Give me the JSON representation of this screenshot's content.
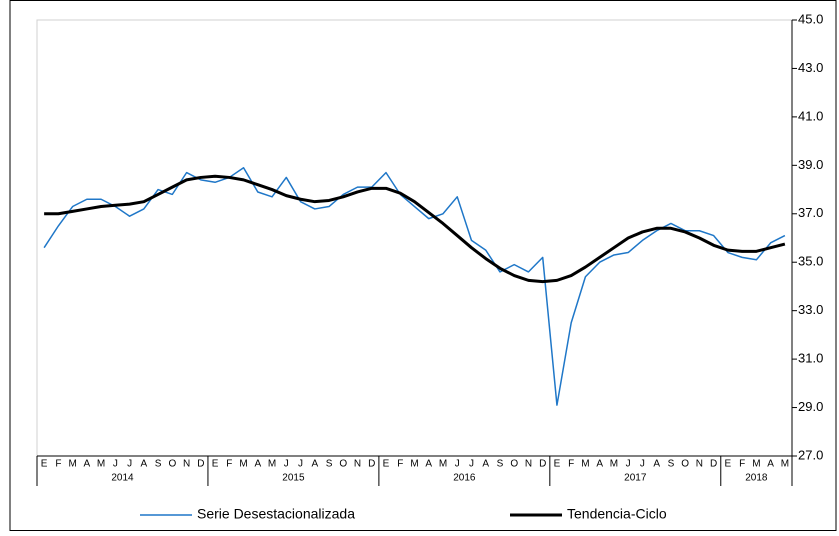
{
  "chart_data": {
    "type": "line",
    "categories": [
      "E",
      "F",
      "M",
      "A",
      "M",
      "J",
      "J",
      "A",
      "S",
      "O",
      "N",
      "D",
      "E",
      "F",
      "M",
      "A",
      "M",
      "J",
      "J",
      "A",
      "S",
      "O",
      "N",
      "D",
      "E",
      "F",
      "M",
      "A",
      "M",
      "J",
      "J",
      "A",
      "S",
      "O",
      "N",
      "D",
      "E",
      "F",
      "M",
      "A",
      "M",
      "J",
      "J",
      "A",
      "S",
      "O",
      "N",
      "D",
      "E",
      "F",
      "M",
      "A",
      "M"
    ],
    "x_groups": [
      "2014",
      "2015",
      "2016",
      "2017",
      "2018"
    ],
    "series": [
      {
        "name": "Serie Desestacionalizada",
        "color": "#1f77c8",
        "values": [
          35.6,
          36.5,
          37.3,
          37.6,
          37.6,
          37.3,
          36.9,
          37.2,
          38.0,
          37.8,
          38.7,
          38.4,
          38.3,
          38.5,
          38.9,
          37.9,
          37.7,
          38.5,
          37.5,
          37.2,
          37.3,
          37.8,
          38.1,
          38.1,
          38.7,
          37.8,
          37.3,
          36.8,
          37.0,
          37.7,
          35.9,
          35.5,
          34.6,
          34.9,
          34.6,
          35.2,
          29.1,
          32.5,
          34.4,
          35.0,
          35.3,
          35.4,
          35.9,
          36.3,
          36.6,
          36.3,
          36.3,
          36.1,
          35.4,
          35.2,
          35.1,
          35.8,
          36.1
        ]
      },
      {
        "name": "Tendencia-Ciclo",
        "color": "#000000",
        "values": [
          37.0,
          37.0,
          37.1,
          37.2,
          37.3,
          37.35,
          37.4,
          37.5,
          37.8,
          38.1,
          38.4,
          38.5,
          38.55,
          38.5,
          38.4,
          38.2,
          38.0,
          37.75,
          37.6,
          37.5,
          37.55,
          37.7,
          37.9,
          38.05,
          38.05,
          37.85,
          37.5,
          37.05,
          36.6,
          36.1,
          35.6,
          35.15,
          34.75,
          34.45,
          34.25,
          34.2,
          34.25,
          34.45,
          34.8,
          35.2,
          35.6,
          36.0,
          36.25,
          36.4,
          36.4,
          36.25,
          36.0,
          35.7,
          35.5,
          35.45,
          35.45,
          35.6,
          35.75
        ]
      }
    ],
    "ylim": [
      27,
      45
    ],
    "yticks": [
      {
        "value": 27,
        "label": "27.0"
      },
      {
        "value": 29,
        "label": "29.0"
      },
      {
        "value": 31,
        "label": "31.0"
      },
      {
        "value": 33,
        "label": "33.0"
      },
      {
        "value": 35,
        "label": "35.0"
      },
      {
        "value": 37,
        "label": "37.0"
      },
      {
        "value": 39,
        "label": "39.0"
      },
      {
        "value": 41,
        "label": "41.0"
      },
      {
        "value": 43,
        "label": "43.0"
      },
      {
        "value": 45,
        "label": "45.0"
      }
    ],
    "grid": false
  }
}
